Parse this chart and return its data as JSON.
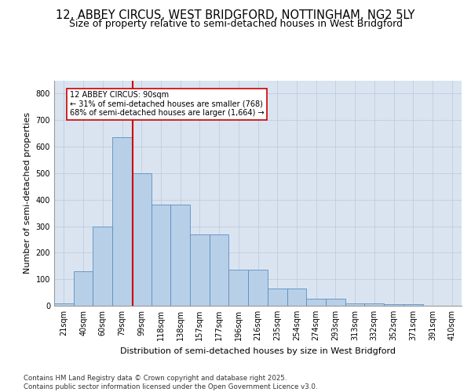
{
  "title_line1": "12, ABBEY CIRCUS, WEST BRIDGFORD, NOTTINGHAM, NG2 5LY",
  "title_line2": "Size of property relative to semi-detached houses in West Bridgford",
  "xlabel": "Distribution of semi-detached houses by size in West Bridgford",
  "ylabel": "Number of semi-detached properties",
  "footer": "Contains HM Land Registry data © Crown copyright and database right 2025.\nContains public sector information licensed under the Open Government Licence v3.0.",
  "bin_labels": [
    "21sqm",
    "40sqm",
    "60sqm",
    "79sqm",
    "99sqm",
    "118sqm",
    "138sqm",
    "157sqm",
    "177sqm",
    "196sqm",
    "216sqm",
    "235sqm",
    "254sqm",
    "274sqm",
    "293sqm",
    "313sqm",
    "332sqm",
    "352sqm",
    "371sqm",
    "391sqm",
    "410sqm"
  ],
  "bar_values": [
    10,
    130,
    300,
    635,
    500,
    380,
    380,
    270,
    270,
    135,
    135,
    65,
    65,
    28,
    28,
    10,
    10,
    5,
    5,
    0,
    0
  ],
  "bar_color": "#b8cfe8",
  "bar_edge_color": "#5a8fc0",
  "vline_color": "#cc0000",
  "vline_pos": 3.55,
  "annotation_text": "12 ABBEY CIRCUS: 90sqm\n← 31% of semi-detached houses are smaller (768)\n68% of semi-detached houses are larger (1,664) →",
  "annotation_box_color": "#cc0000",
  "annotation_bg": "#ffffff",
  "ylim": [
    0,
    850
  ],
  "yticks": [
    0,
    100,
    200,
    300,
    400,
    500,
    600,
    700,
    800
  ],
  "grid_color": "#c0cce0",
  "background_color": "#dae4f0",
  "title_fontsize": 10.5,
  "subtitle_fontsize": 9,
  "tick_fontsize": 7,
  "label_fontsize": 8,
  "footer_fontsize": 6.2
}
